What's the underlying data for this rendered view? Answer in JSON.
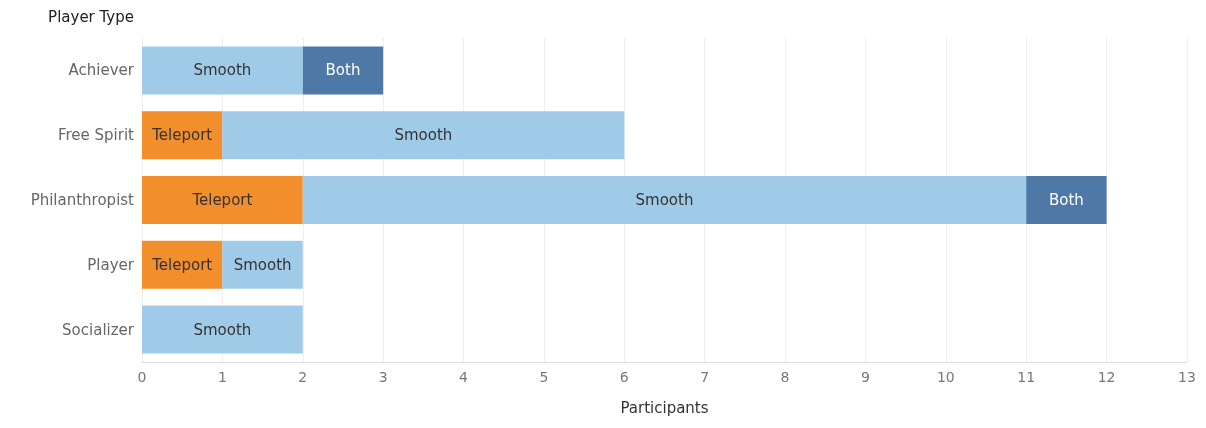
{
  "chart_data": {
    "type": "bar",
    "orientation": "horizontal",
    "stacked": true,
    "ylabel": "Player Type",
    "xlabel": "Participants",
    "categories": [
      "Achiever",
      "Free Spirit",
      "Philanthropist",
      "Player",
      "Socializer"
    ],
    "series": [
      {
        "name": "Teleport",
        "color": "#f28e2b",
        "values": [
          null,
          1,
          2,
          1,
          null
        ]
      },
      {
        "name": "Smooth",
        "color": "#a0cbe8",
        "values": [
          2,
          5,
          9,
          1,
          2
        ]
      },
      {
        "name": "Both",
        "color": "#4e79a7",
        "values": [
          1,
          null,
          1,
          null,
          null
        ]
      }
    ],
    "xlim": [
      0,
      13
    ],
    "xticks": [
      0,
      1,
      2,
      3,
      4,
      5,
      6,
      7,
      8,
      9,
      10,
      11,
      12,
      13
    ],
    "grid": "x",
    "legend": false
  }
}
